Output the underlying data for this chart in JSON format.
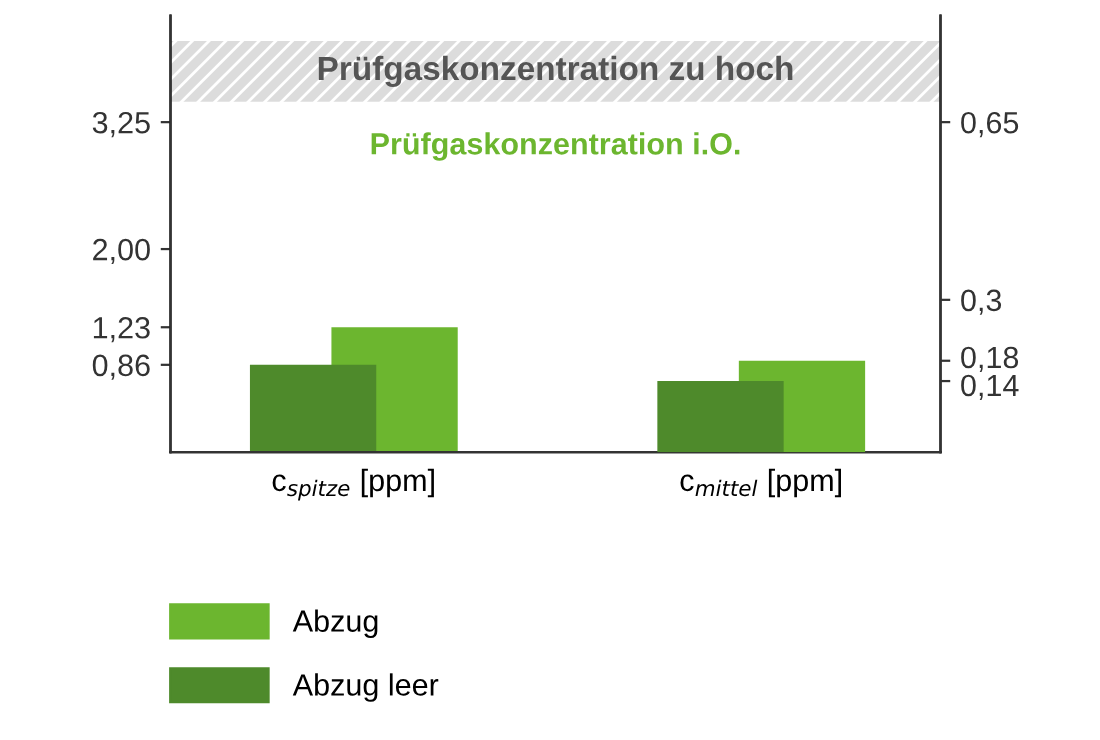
{
  "chart_data": {
    "type": "bar",
    "categories": [
      "c$_{spitze}$ [ppm]",
      "c$_{mittel}$ [ppm]"
    ],
    "series": [
      {
        "name": "Abzug",
        "color": "#6cb62f",
        "values": [
          1.23,
          null
        ]
      },
      {
        "name": "Abzug leer",
        "color": "#4e8a2b",
        "values": [
          0.86,
          null
        ]
      },
      {
        "color": "#6cb62f",
        "values": [
          null,
          0.18
        ],
        "axis": "y2"
      },
      {
        "color": "#4e8a2b",
        "values": [
          null,
          0.14
        ],
        "axis": "y2"
      }
    ],
    "ylim": [
      0,
      4.3
    ],
    "yticks": [
      {
        "value": 0.86,
        "label": "0,86"
      },
      {
        "value": 1.23,
        "label": "1,23"
      },
      {
        "value": 2,
        "label": "2,00"
      },
      {
        "value": 3.25,
        "label": "3,25"
      }
    ],
    "y2lim": [
      0,
      0.86
    ],
    "y2ticks": [
      {
        "value": 0.14,
        "label": "0,14"
      },
      {
        "value": 0.18,
        "label": "0,18"
      },
      {
        "value": 0.3,
        "label": "0,3"
      },
      {
        "value": 0.65,
        "label": "0,65"
      }
    ],
    "bands": [
      {
        "axis": "y",
        "from": 3.45,
        "to": 4.05,
        "label": "Prüfgaskonzentration zu hoch",
        "color": "#dcdcdc"
      }
    ],
    "annotations": [
      "Prüfgaskonzentration i.O."
    ],
    "grid": false,
    "legend": "bottom"
  }
}
